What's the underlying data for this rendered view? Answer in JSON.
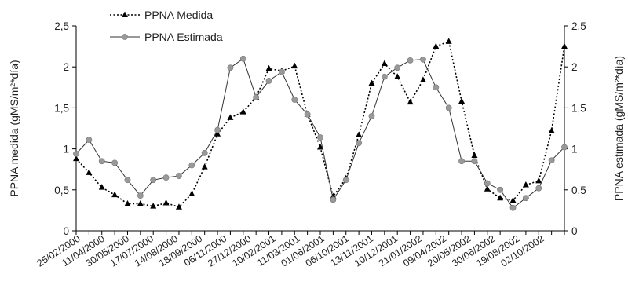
{
  "chart_data": {
    "type": "line",
    "title": "",
    "ylabel_left": "PPNA medida (gMS/m²*día)",
    "ylabel_right": "PPNA estimada (gMS/m²*día)",
    "ylim": [
      0,
      2.5
    ],
    "yticks": [
      "0",
      "0,5",
      "1",
      "1,5",
      "2",
      "2,5"
    ],
    "yticks_right": [
      "0",
      "0,5",
      "1",
      "1,5",
      "2",
      "2,5"
    ],
    "legend_position": "top-left",
    "x_ticks": [
      "25/02/2000",
      "11/04/2000",
      "30/05/2000",
      "17/07/2000",
      "14/08/2000",
      "18/09/2000",
      "06/11/2000",
      "27/12/2000",
      "10/02/2001",
      "11/03/2001",
      "01/06/2001",
      "06/10/2001",
      "13/11/2001",
      "10/12/2001",
      "21/01/2002",
      "09/04/2002",
      "20/05/2002",
      "30/06/2002",
      "19/08/2002",
      "02/10/2002"
    ],
    "series": [
      {
        "name": "PPNA Medida",
        "style": "dotted-triangle",
        "color": "#000000",
        "values": [
          0.88,
          0.71,
          0.53,
          0.44,
          0.33,
          0.33,
          0.3,
          0.34,
          0.29,
          0.45,
          0.78,
          1.18,
          1.38,
          1.45,
          1.63,
          1.98,
          1.95,
          2.01,
          1.42,
          1.02,
          0.42,
          0.64,
          1.17,
          1.8,
          2.04,
          1.88,
          1.57,
          1.84,
          2.25,
          2.31,
          1.58,
          0.92,
          0.51,
          0.4,
          0.37,
          0.56,
          0.61,
          1.22,
          2.25
        ]
      },
      {
        "name": "PPNA Estimada",
        "style": "solid-circle",
        "color": "#999999",
        "values": [
          0.94,
          1.11,
          0.85,
          0.83,
          0.62,
          0.43,
          0.62,
          0.65,
          0.67,
          0.8,
          0.95,
          1.23,
          1.99,
          2.1,
          1.63,
          1.83,
          1.94,
          1.6,
          1.42,
          1.14,
          0.38,
          0.62,
          1.07,
          1.4,
          1.88,
          1.99,
          2.08,
          2.09,
          1.75,
          1.5,
          0.85,
          0.85,
          0.58,
          0.5,
          0.28,
          0.4,
          0.52,
          0.86,
          1.02
        ]
      }
    ]
  }
}
